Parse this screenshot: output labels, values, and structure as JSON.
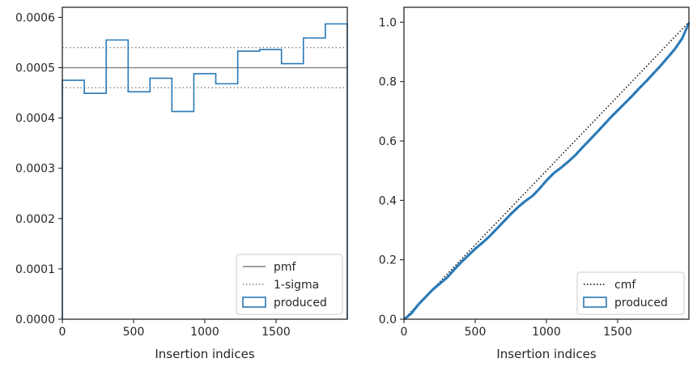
{
  "colors": {
    "series": "#2878b5",
    "reference": "#808080",
    "sigma": "#808080",
    "cmf": "#000000",
    "axis": "#262626"
  },
  "chart_data": [
    {
      "type": "line",
      "xlabel": "Insertion indices",
      "ylabel": "",
      "xlim": [
        0,
        2000
      ],
      "ylim": [
        0,
        0.00062
      ],
      "xticks": [
        0,
        500,
        1000,
        1500
      ],
      "xtick_labels": [
        "0",
        "500",
        "1000",
        "1500"
      ],
      "yticks": [
        0,
        0.0001,
        0.0002,
        0.0003,
        0.0004,
        0.0005,
        0.0006
      ],
      "ytick_labels": [
        "0.0000",
        "0.0001",
        "0.0002",
        "0.0003",
        "0.0004",
        "0.0005",
        "0.0006"
      ],
      "grid": false,
      "legend_position": "lower-right",
      "reference_lines": [
        {
          "name": "pmf",
          "value": 0.0005,
          "style": "solid"
        },
        {
          "name": "1-sigma",
          "value": 0.00054,
          "style": "dotted"
        },
        {
          "name": "1-sigma",
          "value": 0.00046,
          "style": "dotted",
          "legend": false
        }
      ],
      "series": [
        {
          "name": "produced",
          "style": "step",
          "bin_edges": [
            0,
            154,
            308,
            462,
            615,
            769,
            923,
            1077,
            1231,
            1385,
            1538,
            1692,
            1846,
            2000
          ],
          "values": [
            0.000475,
            0.000449,
            0.000555,
            0.000452,
            0.000479,
            0.000413,
            0.000488,
            0.000468,
            0.000533,
            0.000536,
            0.000508,
            0.000559,
            0.000587
          ]
        }
      ],
      "legend": [
        {
          "label": "pmf",
          "kind": "solid-line"
        },
        {
          "label": "1-sigma",
          "kind": "dotted-line"
        },
        {
          "label": "produced",
          "kind": "box"
        }
      ]
    },
    {
      "type": "line",
      "xlabel": "Insertion indices",
      "ylabel": "",
      "xlim": [
        0,
        2000
      ],
      "ylim": [
        0,
        1.05
      ],
      "xticks": [
        0,
        500,
        1000,
        1500
      ],
      "xtick_labels": [
        "0",
        "500",
        "1000",
        "1500"
      ],
      "yticks": [
        0,
        0.2,
        0.4,
        0.6,
        0.8,
        1.0
      ],
      "ytick_labels": [
        "0.0",
        "0.2",
        "0.4",
        "0.6",
        "0.8",
        "1.0"
      ],
      "grid": false,
      "legend_position": "lower-right",
      "series": [
        {
          "name": "cmf",
          "style": "dotted",
          "x": [
            0,
            2000
          ],
          "y": [
            0,
            1.0
          ]
        },
        {
          "name": "produced",
          "style": "step",
          "x": [
            0,
            50,
            100,
            150,
            200,
            250,
            300,
            350,
            400,
            450,
            500,
            550,
            600,
            650,
            700,
            750,
            800,
            850,
            900,
            950,
            1000,
            1050,
            1100,
            1150,
            1200,
            1250,
            1300,
            1350,
            1400,
            1450,
            1500,
            1550,
            1600,
            1650,
            1700,
            1750,
            1800,
            1850,
            1900,
            1950,
            2000
          ],
          "y": [
            0,
            0.02,
            0.05,
            0.075,
            0.1,
            0.12,
            0.14,
            0.167,
            0.192,
            0.215,
            0.238,
            0.258,
            0.28,
            0.305,
            0.33,
            0.355,
            0.378,
            0.398,
            0.415,
            0.44,
            0.468,
            0.492,
            0.51,
            0.53,
            0.552,
            0.578,
            0.603,
            0.628,
            0.654,
            0.68,
            0.704,
            0.728,
            0.752,
            0.778,
            0.802,
            0.828,
            0.854,
            0.882,
            0.91,
            0.945,
            1.0
          ]
        }
      ],
      "legend": [
        {
          "label": "cmf",
          "kind": "dotted-line"
        },
        {
          "label": "produced",
          "kind": "box"
        }
      ]
    }
  ]
}
